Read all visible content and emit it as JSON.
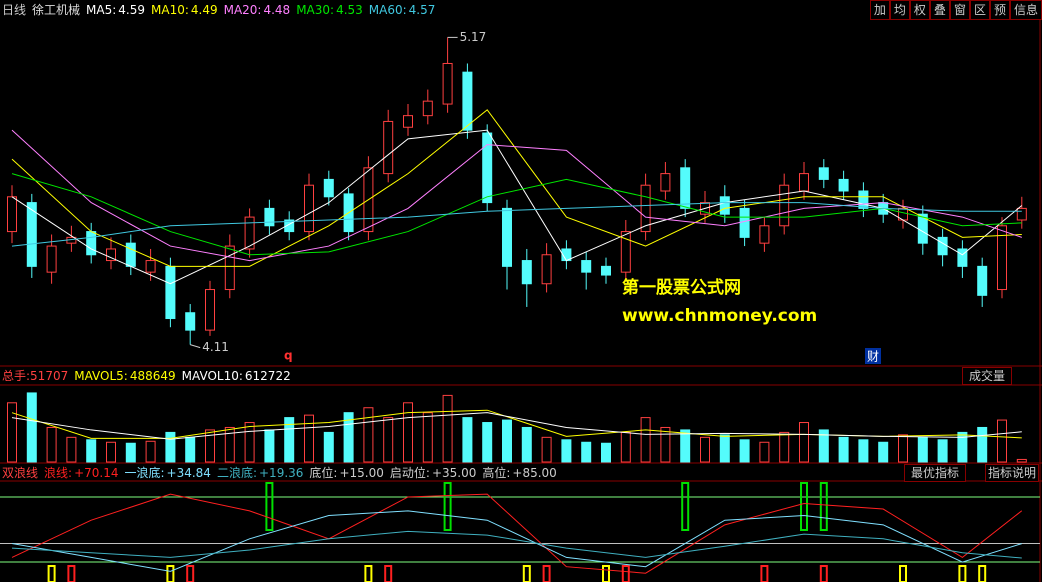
{
  "header": {
    "period": "日线",
    "stock": "徐工机械",
    "buttons": [
      "加",
      "均",
      "权",
      "叠",
      "窗",
      "区",
      "预",
      "信息"
    ]
  },
  "chart_data": {
    "type": "candlestick",
    "ylim": [
      4.05,
      5.23
    ],
    "candles": {
      "open": [
        4.5,
        4.6,
        4.36,
        4.46,
        4.5,
        4.4,
        4.46,
        4.36,
        4.38,
        4.22,
        4.16,
        4.3,
        4.44,
        4.58,
        4.54,
        4.5,
        4.68,
        4.63,
        4.5,
        4.7,
        4.86,
        4.9,
        4.94,
        5.05,
        4.84,
        4.58,
        4.4,
        4.32,
        4.44,
        4.4,
        4.38,
        4.36,
        4.5,
        4.64,
        4.72,
        4.56,
        4.62,
        4.58,
        4.46,
        4.52,
        4.64,
        4.72,
        4.68,
        4.64,
        4.6,
        4.54,
        4.56,
        4.48,
        4.44,
        4.38,
        4.3,
        4.54
      ],
      "close": [
        4.62,
        4.38,
        4.45,
        4.48,
        4.42,
        4.44,
        4.38,
        4.4,
        4.2,
        4.16,
        4.3,
        4.45,
        4.55,
        4.52,
        4.5,
        4.66,
        4.62,
        4.5,
        4.72,
        4.88,
        4.9,
        4.95,
        5.08,
        4.85,
        4.6,
        4.38,
        4.32,
        4.42,
        4.4,
        4.36,
        4.35,
        4.5,
        4.66,
        4.7,
        4.58,
        4.6,
        4.56,
        4.48,
        4.52,
        4.66,
        4.7,
        4.68,
        4.64,
        4.58,
        4.56,
        4.58,
        4.46,
        4.42,
        4.38,
        4.28,
        4.52,
        4.58
      ],
      "high": [
        4.66,
        4.63,
        4.49,
        4.52,
        4.53,
        4.48,
        4.49,
        4.44,
        4.41,
        4.25,
        4.33,
        4.49,
        4.58,
        4.61,
        4.57,
        4.7,
        4.71,
        4.65,
        4.76,
        4.92,
        4.94,
        4.99,
        5.17,
        5.08,
        4.87,
        4.61,
        4.44,
        4.46,
        4.47,
        4.43,
        4.41,
        4.54,
        4.7,
        4.74,
        4.75,
        4.64,
        4.66,
        4.61,
        4.55,
        4.7,
        4.74,
        4.75,
        4.71,
        4.67,
        4.63,
        4.61,
        4.59,
        4.51,
        4.47,
        4.41,
        4.55,
        4.62
      ],
      "low": [
        4.46,
        4.34,
        4.32,
        4.43,
        4.39,
        4.37,
        4.35,
        4.33,
        4.17,
        4.11,
        4.14,
        4.27,
        4.41,
        4.49,
        4.47,
        4.47,
        4.59,
        4.47,
        4.47,
        4.67,
        4.83,
        4.87,
        4.91,
        4.82,
        4.57,
        4.3,
        4.24,
        4.29,
        4.37,
        4.3,
        4.32,
        4.33,
        4.47,
        4.61,
        4.55,
        4.53,
        4.53,
        4.45,
        4.43,
        4.49,
        4.61,
        4.65,
        4.61,
        4.55,
        4.53,
        4.51,
        4.42,
        4.38,
        4.34,
        4.24,
        4.27,
        4.51
      ]
    },
    "up_color": "#ff4040",
    "down_color": "#54fcfc",
    "ma_x": [
      0,
      4,
      8,
      12,
      16,
      20,
      24,
      28,
      32,
      36,
      40,
      44,
      48,
      51
    ],
    "series": [
      {
        "name": "MA5:",
        "color": "#ffffff",
        "values": [
          4.62,
          4.44,
          4.32,
          4.45,
          4.6,
          4.82,
          4.85,
          4.4,
          4.52,
          4.6,
          4.64,
          4.58,
          4.42,
          4.59
        ]
      },
      {
        "name": "MA10:",
        "color": "#ffff00",
        "values": [
          4.75,
          4.5,
          4.38,
          4.38,
          4.52,
          4.7,
          4.92,
          4.55,
          4.45,
          4.58,
          4.62,
          4.62,
          4.48,
          4.49
        ]
      },
      {
        "name": "MA20:",
        "color": "#ff80ff",
        "values": [
          4.85,
          4.6,
          4.45,
          4.4,
          4.45,
          4.58,
          4.8,
          4.78,
          4.55,
          4.52,
          4.58,
          4.6,
          4.55,
          4.48
        ]
      },
      {
        "name": "MA30:",
        "color": "#00e600",
        "values": [
          4.7,
          4.62,
          4.5,
          4.42,
          4.43,
          4.5,
          4.62,
          4.68,
          4.62,
          4.55,
          4.55,
          4.58,
          4.52,
          4.53
        ]
      },
      {
        "name": "MA60:",
        "color": "#40c8e0",
        "values": [
          4.45,
          4.48,
          4.52,
          4.53,
          4.54,
          4.55,
          4.57,
          4.58,
          4.59,
          4.6,
          4.6,
          4.58,
          4.57,
          4.57
        ]
      }
    ],
    "markers": [
      "q",
      "财"
    ],
    "watermark": [
      "第一股票公式网",
      "www.chnmoney.com"
    ]
  },
  "volume_chart": {
    "type": "bar",
    "name": "总手:",
    "ylim": [
      0,
      1500000
    ],
    "button": "成交量",
    "values": [
      1200000,
      1400000,
      700000,
      500000,
      450000,
      400000,
      380000,
      420000,
      600000,
      500000,
      650000,
      700000,
      800000,
      650000,
      900000,
      950000,
      600000,
      1000000,
      1100000,
      900000,
      1200000,
      1000000,
      1350000,
      900000,
      800000,
      850000,
      700000,
      500000,
      450000,
      400000,
      380000,
      600000,
      900000,
      700000,
      650000,
      500000,
      550000,
      450000,
      400000,
      600000,
      800000,
      650000,
      500000,
      450000,
      400000,
      550000,
      500000,
      450000,
      600000,
      700000,
      850000,
      51707
    ],
    "series": [
      {
        "name": "MAVOL5:",
        "color": "#ffff00",
        "values": [
          1000000,
          480000,
          480000,
          720000,
          800000,
          1000000,
          1050000,
          520000,
          650000,
          520000,
          560000,
          520000,
          550000,
          488649
        ]
      },
      {
        "name": "MAVOL10:",
        "color": "#ffffff",
        "values": [
          900000,
          650000,
          460000,
          620000,
          720000,
          900000,
          1000000,
          700000,
          560000,
          580000,
          560000,
          520000,
          500000,
          612722
        ]
      }
    ]
  },
  "indicator_chart": {
    "type": "line",
    "title": "双浪线",
    "ylim": [
      0,
      100
    ],
    "buttons": [
      "最优指标",
      "指标说明"
    ],
    "series": [
      {
        "name": "浪线:",
        "color": "#ff2020",
        "value_label": "+70.14",
        "values": [
          20,
          60,
          88,
          70,
          40,
          85,
          88,
          10,
          3,
          55,
          78,
          72,
          20,
          70.14
        ]
      },
      {
        "name": "一浪底:",
        "color": "#80e0ff",
        "value_label": "+34.84",
        "values": [
          35,
          20,
          5,
          40,
          65,
          70,
          60,
          20,
          10,
          60,
          65,
          55,
          15,
          34.84
        ]
      },
      {
        "name": "二浪底:",
        "color": "#40b0c0",
        "value_label": "+19.36",
        "values": [
          30,
          25,
          20,
          28,
          40,
          48,
          44,
          30,
          20,
          32,
          45,
          40,
          25,
          19.36
        ]
      }
    ],
    "levels": [
      {
        "name": "底位:",
        "value": 15,
        "label": "+15.00",
        "color": "#80ff80"
      },
      {
        "name": "启动位:",
        "value": 35,
        "label": "+35.00",
        "color": "#c0c0c0"
      },
      {
        "name": "高位:",
        "value": 85,
        "label": "+85.00",
        "color": "#80ff80"
      }
    ],
    "signals": {
      "green": [
        13,
        22,
        34,
        40,
        41
      ],
      "yellow": [
        2,
        8,
        18,
        26,
        30,
        45,
        48,
        49
      ],
      "red": [
        3,
        9,
        19,
        27,
        31,
        38,
        41
      ]
    }
  }
}
